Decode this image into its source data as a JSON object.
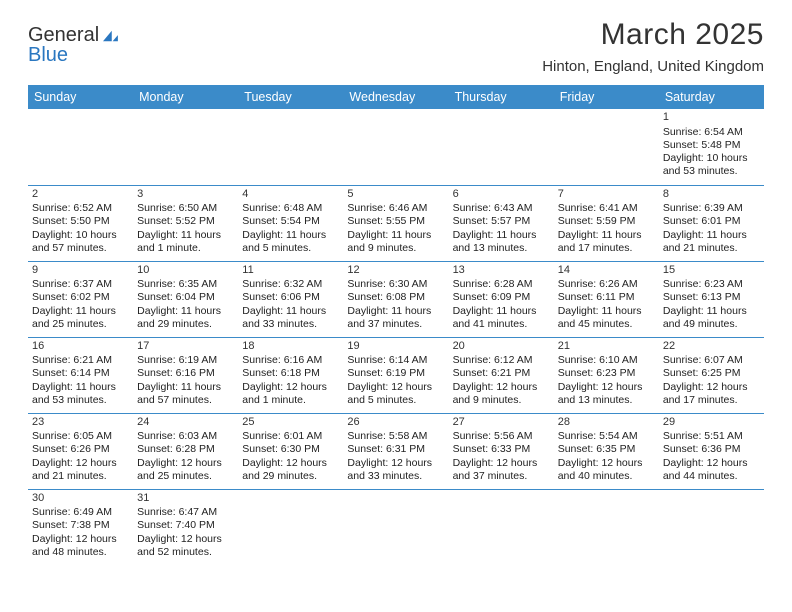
{
  "logo": {
    "text1": "General",
    "text2": "Blue"
  },
  "title": "March 2025",
  "location": "Hinton, England, United Kingdom",
  "colors": {
    "header_bg": "#3b8bc9",
    "header_fg": "#ffffff",
    "border": "#3b8bc9",
    "text": "#222222",
    "title_text": "#333333",
    "logo_blue": "#2a77c0"
  },
  "typography": {
    "title_fontsize_pt": 22,
    "location_fontsize_pt": 11,
    "dayhdr_fontsize_pt": 9,
    "cell_fontsize_pt": 8
  },
  "day_headers": [
    "Sunday",
    "Monday",
    "Tuesday",
    "Wednesday",
    "Thursday",
    "Friday",
    "Saturday"
  ],
  "weeks": [
    [
      null,
      null,
      null,
      null,
      null,
      null,
      {
        "n": "1",
        "sunrise": "Sunrise: 6:54 AM",
        "sunset": "Sunset: 5:48 PM",
        "daylight": "Daylight: 10 hours and 53 minutes."
      }
    ],
    [
      {
        "n": "2",
        "sunrise": "Sunrise: 6:52 AM",
        "sunset": "Sunset: 5:50 PM",
        "daylight": "Daylight: 10 hours and 57 minutes."
      },
      {
        "n": "3",
        "sunrise": "Sunrise: 6:50 AM",
        "sunset": "Sunset: 5:52 PM",
        "daylight": "Daylight: 11 hours and 1 minute."
      },
      {
        "n": "4",
        "sunrise": "Sunrise: 6:48 AM",
        "sunset": "Sunset: 5:54 PM",
        "daylight": "Daylight: 11 hours and 5 minutes."
      },
      {
        "n": "5",
        "sunrise": "Sunrise: 6:46 AM",
        "sunset": "Sunset: 5:55 PM",
        "daylight": "Daylight: 11 hours and 9 minutes."
      },
      {
        "n": "6",
        "sunrise": "Sunrise: 6:43 AM",
        "sunset": "Sunset: 5:57 PM",
        "daylight": "Daylight: 11 hours and 13 minutes."
      },
      {
        "n": "7",
        "sunrise": "Sunrise: 6:41 AM",
        "sunset": "Sunset: 5:59 PM",
        "daylight": "Daylight: 11 hours and 17 minutes."
      },
      {
        "n": "8",
        "sunrise": "Sunrise: 6:39 AM",
        "sunset": "Sunset: 6:01 PM",
        "daylight": "Daylight: 11 hours and 21 minutes."
      }
    ],
    [
      {
        "n": "9",
        "sunrise": "Sunrise: 6:37 AM",
        "sunset": "Sunset: 6:02 PM",
        "daylight": "Daylight: 11 hours and 25 minutes."
      },
      {
        "n": "10",
        "sunrise": "Sunrise: 6:35 AM",
        "sunset": "Sunset: 6:04 PM",
        "daylight": "Daylight: 11 hours and 29 minutes."
      },
      {
        "n": "11",
        "sunrise": "Sunrise: 6:32 AM",
        "sunset": "Sunset: 6:06 PM",
        "daylight": "Daylight: 11 hours and 33 minutes."
      },
      {
        "n": "12",
        "sunrise": "Sunrise: 6:30 AM",
        "sunset": "Sunset: 6:08 PM",
        "daylight": "Daylight: 11 hours and 37 minutes."
      },
      {
        "n": "13",
        "sunrise": "Sunrise: 6:28 AM",
        "sunset": "Sunset: 6:09 PM",
        "daylight": "Daylight: 11 hours and 41 minutes."
      },
      {
        "n": "14",
        "sunrise": "Sunrise: 6:26 AM",
        "sunset": "Sunset: 6:11 PM",
        "daylight": "Daylight: 11 hours and 45 minutes."
      },
      {
        "n": "15",
        "sunrise": "Sunrise: 6:23 AM",
        "sunset": "Sunset: 6:13 PM",
        "daylight": "Daylight: 11 hours and 49 minutes."
      }
    ],
    [
      {
        "n": "16",
        "sunrise": "Sunrise: 6:21 AM",
        "sunset": "Sunset: 6:14 PM",
        "daylight": "Daylight: 11 hours and 53 minutes."
      },
      {
        "n": "17",
        "sunrise": "Sunrise: 6:19 AM",
        "sunset": "Sunset: 6:16 PM",
        "daylight": "Daylight: 11 hours and 57 minutes."
      },
      {
        "n": "18",
        "sunrise": "Sunrise: 6:16 AM",
        "sunset": "Sunset: 6:18 PM",
        "daylight": "Daylight: 12 hours and 1 minute."
      },
      {
        "n": "19",
        "sunrise": "Sunrise: 6:14 AM",
        "sunset": "Sunset: 6:19 PM",
        "daylight": "Daylight: 12 hours and 5 minutes."
      },
      {
        "n": "20",
        "sunrise": "Sunrise: 6:12 AM",
        "sunset": "Sunset: 6:21 PM",
        "daylight": "Daylight: 12 hours and 9 minutes."
      },
      {
        "n": "21",
        "sunrise": "Sunrise: 6:10 AM",
        "sunset": "Sunset: 6:23 PM",
        "daylight": "Daylight: 12 hours and 13 minutes."
      },
      {
        "n": "22",
        "sunrise": "Sunrise: 6:07 AM",
        "sunset": "Sunset: 6:25 PM",
        "daylight": "Daylight: 12 hours and 17 minutes."
      }
    ],
    [
      {
        "n": "23",
        "sunrise": "Sunrise: 6:05 AM",
        "sunset": "Sunset: 6:26 PM",
        "daylight": "Daylight: 12 hours and 21 minutes."
      },
      {
        "n": "24",
        "sunrise": "Sunrise: 6:03 AM",
        "sunset": "Sunset: 6:28 PM",
        "daylight": "Daylight: 12 hours and 25 minutes."
      },
      {
        "n": "25",
        "sunrise": "Sunrise: 6:01 AM",
        "sunset": "Sunset: 6:30 PM",
        "daylight": "Daylight: 12 hours and 29 minutes."
      },
      {
        "n": "26",
        "sunrise": "Sunrise: 5:58 AM",
        "sunset": "Sunset: 6:31 PM",
        "daylight": "Daylight: 12 hours and 33 minutes."
      },
      {
        "n": "27",
        "sunrise": "Sunrise: 5:56 AM",
        "sunset": "Sunset: 6:33 PM",
        "daylight": "Daylight: 12 hours and 37 minutes."
      },
      {
        "n": "28",
        "sunrise": "Sunrise: 5:54 AM",
        "sunset": "Sunset: 6:35 PM",
        "daylight": "Daylight: 12 hours and 40 minutes."
      },
      {
        "n": "29",
        "sunrise": "Sunrise: 5:51 AM",
        "sunset": "Sunset: 6:36 PM",
        "daylight": "Daylight: 12 hours and 44 minutes."
      }
    ],
    [
      {
        "n": "30",
        "sunrise": "Sunrise: 6:49 AM",
        "sunset": "Sunset: 7:38 PM",
        "daylight": "Daylight: 12 hours and 48 minutes."
      },
      {
        "n": "31",
        "sunrise": "Sunrise: 6:47 AM",
        "sunset": "Sunset: 7:40 PM",
        "daylight": "Daylight: 12 hours and 52 minutes."
      },
      null,
      null,
      null,
      null,
      null
    ]
  ]
}
